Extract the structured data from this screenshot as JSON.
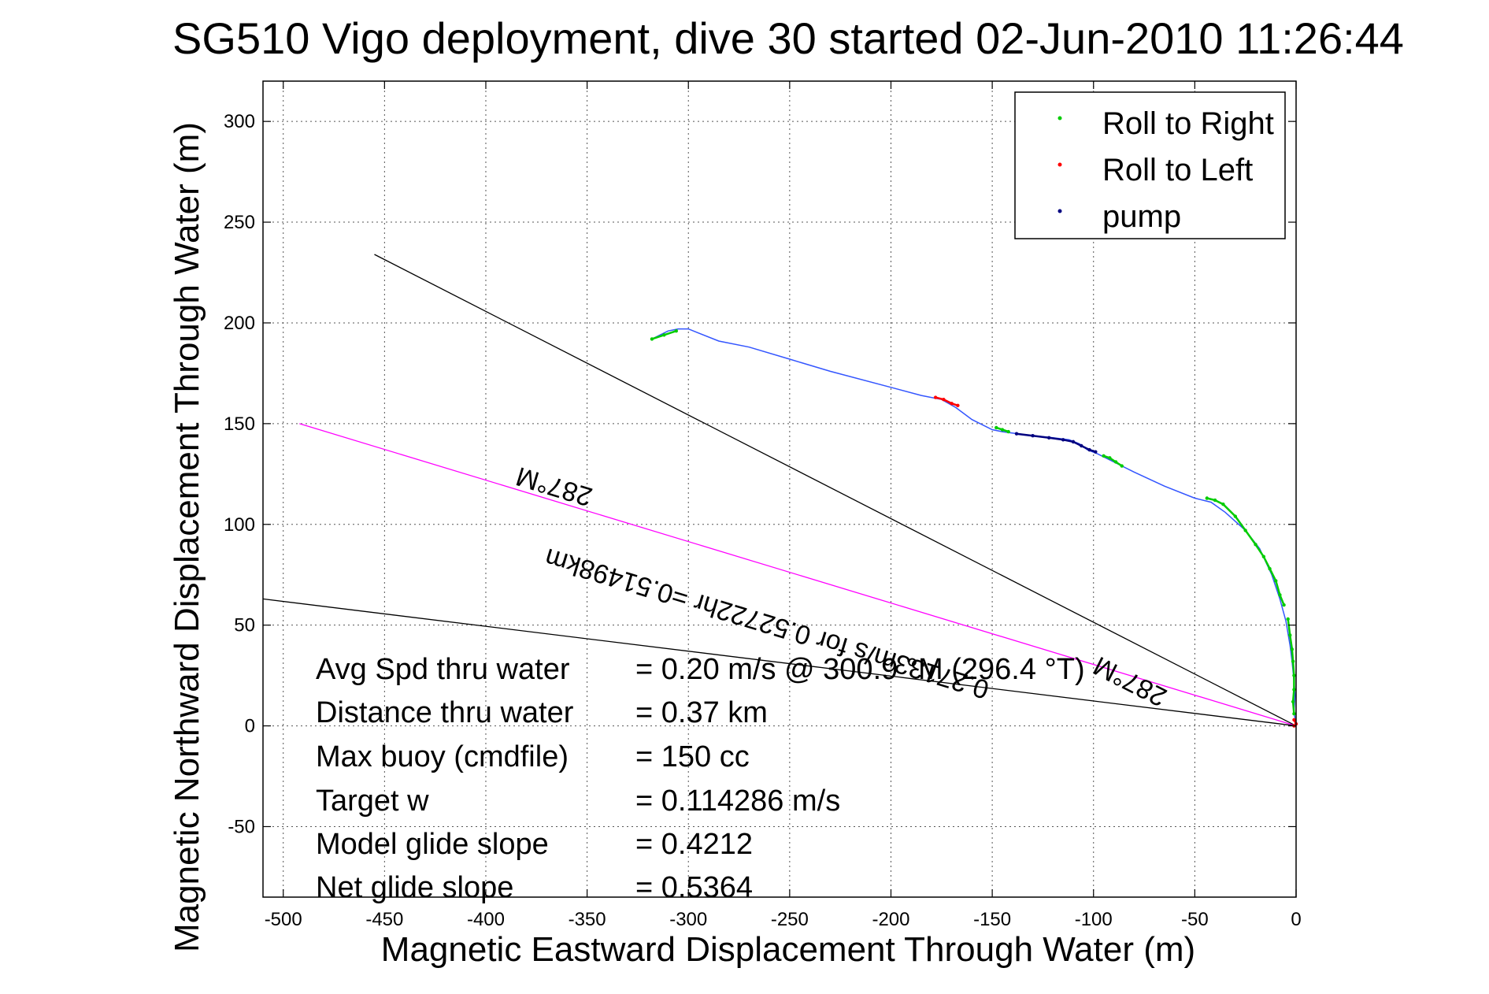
{
  "chart_data": {
    "type": "line",
    "title": "SG510 Vigo deployment, dive 30 started 02-Jun-2010 11:26:44",
    "xlabel": "Magnetic Eastward Displacement Through Water (m)",
    "ylabel": "Magnetic Northward Displacement Through Water (m)",
    "xlim": [
      -510,
      0
    ],
    "ylim": [
      -85,
      320
    ],
    "xticks": [
      -500,
      -450,
      -400,
      -350,
      -300,
      -250,
      -200,
      -150,
      -100,
      -50,
      0
    ],
    "yticks": [
      -50,
      0,
      50,
      100,
      150,
      200,
      250,
      300
    ],
    "grid": true,
    "legend": {
      "position": "top-right",
      "entries": [
        {
          "label": "Roll to Right",
          "color": "#00cc00"
        },
        {
          "label": "Roll to Left",
          "color": "#ff0000"
        },
        {
          "label": "pump",
          "color": "#000080"
        }
      ]
    },
    "track": {
      "color": "#3355ff",
      "x": [
        -318,
        -310,
        -305,
        -300,
        -295,
        -285,
        -270,
        -250,
        -230,
        -200,
        -185,
        -175,
        -168,
        -160,
        -150,
        -145,
        -130,
        -120,
        -112,
        -107,
        -103,
        -98,
        -90,
        -80,
        -65,
        -50,
        -42,
        -35,
        -25,
        -18,
        -12,
        -8,
        -5,
        -3,
        -2,
        -1,
        -0.5,
        -1,
        -0.5,
        0
      ],
      "y": [
        192,
        196,
        197,
        197,
        195,
        191,
        188,
        182,
        176,
        168,
        164,
        162,
        158,
        152,
        147,
        146,
        144,
        143,
        142,
        140,
        137,
        135,
        131,
        126,
        119,
        113,
        111,
        106,
        97,
        88,
        75,
        63,
        52,
        40,
        32,
        22,
        15,
        8,
        3,
        0
      ]
    },
    "markers": {
      "roll_right": [
        {
          "x": [
            -318,
            -312,
            -306
          ],
          "y": [
            192,
            194,
            196
          ]
        },
        {
          "x": [
            -148,
            -145,
            -142
          ],
          "y": [
            148,
            147,
            146
          ]
        },
        {
          "x": [
            -95,
            -92,
            -89,
            -86
          ],
          "y": [
            134,
            133,
            131,
            129
          ]
        },
        {
          "x": [
            -44,
            -40,
            -36,
            -30,
            -25,
            -20,
            -16,
            -13,
            -10,
            -8,
            -6
          ],
          "y": [
            113,
            112,
            110,
            104,
            97,
            90,
            84,
            78,
            72,
            65,
            60
          ]
        },
        {
          "x": [
            -4,
            -3,
            -2,
            -1.5,
            -1,
            -1,
            -1.5,
            -1
          ],
          "y": [
            53,
            45,
            38,
            32,
            25,
            18,
            12,
            6
          ]
        }
      ],
      "roll_left": [
        {
          "x": [
            -178,
            -174,
            -170,
            -167
          ],
          "y": [
            163,
            162,
            160,
            159
          ]
        },
        {
          "x": [
            -1,
            0,
            -1
          ],
          "y": [
            3,
            1,
            0
          ]
        }
      ],
      "pump": [
        {
          "x": [
            -138,
            -130,
            -122,
            -115,
            -110,
            -106,
            -102,
            -99
          ],
          "y": [
            145,
            144,
            143,
            142,
            141,
            139,
            137,
            136
          ]
        }
      ]
    },
    "reference_lines": [
      {
        "color": "#000000",
        "x": [
          -455,
          0
        ],
        "y": [
          234,
          0
        ]
      },
      {
        "color": "#ff00ff",
        "x": [
          -492,
          0
        ],
        "y": [
          150,
          0
        ]
      },
      {
        "color": "#000000",
        "x": [
          -510,
          0
        ],
        "y": [
          63,
          0
        ]
      }
    ],
    "rotated_annotations": [
      {
        "text": "287°M",
        "x": -365,
        "y": 123,
        "angle": 196.8
      },
      {
        "text": "0.27133m/s for 0.52722hr =0.51498km",
        "x": -260,
        "y": 55,
        "angle": 196.8
      },
      {
        "text": "287°M",
        "x": -80,
        "y": 26,
        "angle": 207
      }
    ],
    "stats": [
      {
        "label": "Avg Spd thru water",
        "value": "=  0.20 m/s @ 300.9 °M (296.4 °T)"
      },
      {
        "label": "Distance thru water",
        "value": "=  0.37 km"
      },
      {
        "label": "Max buoy (cmdfile)",
        "value": "= 150 cc"
      },
      {
        "label": "Target w",
        "value": "= 0.114286 m/s"
      },
      {
        "label": "Model glide slope",
        "value": "= 0.4212"
      },
      {
        "label": "Net glide slope",
        "value": "= 0.5364"
      }
    ]
  }
}
